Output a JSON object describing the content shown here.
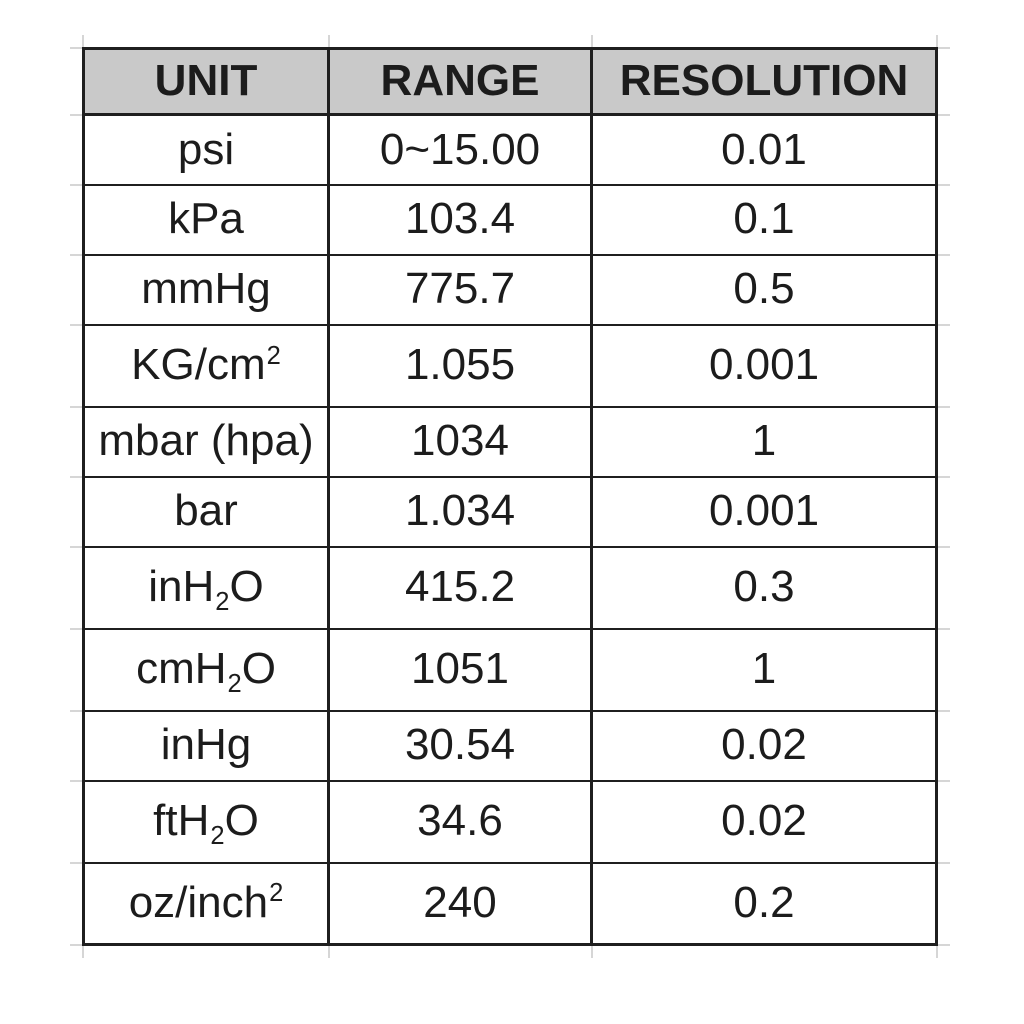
{
  "chart_data": {
    "type": "table",
    "title": "",
    "columns": [
      "UNIT",
      "RANGE",
      "RESOLUTION"
    ],
    "rows": [
      {
        "unit": "psi",
        "range": "0~15.00",
        "resolution": "0.01",
        "unit_segments": [
          {
            "t": "psi"
          }
        ]
      },
      {
        "unit": "kPa",
        "range": "103.4",
        "resolution": "0.1",
        "unit_segments": [
          {
            "t": "kPa"
          }
        ]
      },
      {
        "unit": "mmHg",
        "range": "775.7",
        "resolution": "0.5",
        "unit_segments": [
          {
            "t": "mmHg"
          }
        ]
      },
      {
        "unit": "KG/cm²",
        "range": "1.055",
        "resolution": "0.001",
        "unit_segments": [
          {
            "t": "KG/cm"
          },
          {
            "t": "2",
            "style": "sup"
          }
        ]
      },
      {
        "unit": "mbar (hpa)",
        "range": "1034",
        "resolution": "1",
        "unit_segments": [
          {
            "t": "mbar (hpa)"
          }
        ]
      },
      {
        "unit": "bar",
        "range": "1.034",
        "resolution": "0.001",
        "unit_segments": [
          {
            "t": "bar"
          }
        ]
      },
      {
        "unit": "inH₂O",
        "range": "415.2",
        "resolution": "0.3",
        "unit_segments": [
          {
            "t": "inH"
          },
          {
            "t": "2",
            "style": "sub"
          },
          {
            "t": "O"
          }
        ]
      },
      {
        "unit": "cmH₂O",
        "range": "1051",
        "resolution": "1",
        "unit_segments": [
          {
            "t": "cmH"
          },
          {
            "t": "2",
            "style": "sub"
          },
          {
            "t": "O"
          }
        ]
      },
      {
        "unit": "inHg",
        "range": "30.54",
        "resolution": "0.02",
        "unit_segments": [
          {
            "t": "inHg"
          }
        ]
      },
      {
        "unit": "ftH₂O",
        "range": "34.6",
        "resolution": "0.02",
        "unit_segments": [
          {
            "t": "ftH"
          },
          {
            "t": "2",
            "style": "sub"
          },
          {
            "t": "O"
          }
        ]
      },
      {
        "unit": "oz/inch²",
        "range": "240",
        "resolution": "0.2",
        "unit_segments": [
          {
            "t": "oz/inch"
          },
          {
            "t": "2",
            "style": "sup"
          }
        ]
      }
    ]
  },
  "colors": {
    "header_bg": "#c9c9c9",
    "border": "#1f1f1f",
    "text": "#1c1c1c",
    "gridline_stub": "#d6d6d6",
    "background": "#ffffff"
  }
}
